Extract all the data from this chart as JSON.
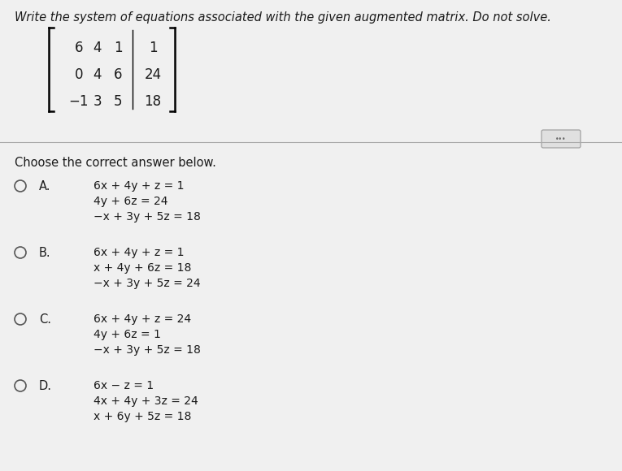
{
  "background_color": "#f0f0f0",
  "title_text": "Write the system of equations associated with the given augmented matrix. Do not solve.",
  "matrix_rows": [
    [
      "6",
      "4",
      "1",
      "1"
    ],
    [
      "0",
      "4",
      "6",
      "24"
    ],
    [
      "−1",
      "3",
      "5",
      "18"
    ]
  ],
  "choose_text": "Choose the correct answer below.",
  "options": [
    {
      "label": "A.",
      "lines": [
        "6x + 4y + z = 1",
        "4y + 6z = 24",
        "−x + 3y + 5z = 18"
      ]
    },
    {
      "label": "B.",
      "lines": [
        "6x + 4y + z = 1",
        "x + 4y + 6z = 18",
        "−x + 3y + 5z = 24"
      ]
    },
    {
      "label": "C.",
      "lines": [
        "6x + 4y + z = 24",
        "4y + 6z = 1",
        "−x + 3y + 5z = 18"
      ]
    },
    {
      "label": "D.",
      "lines": [
        "6x − z = 1",
        "4x + 4y + 3z = 24",
        "x + 6y + 5z = 18"
      ]
    }
  ]
}
